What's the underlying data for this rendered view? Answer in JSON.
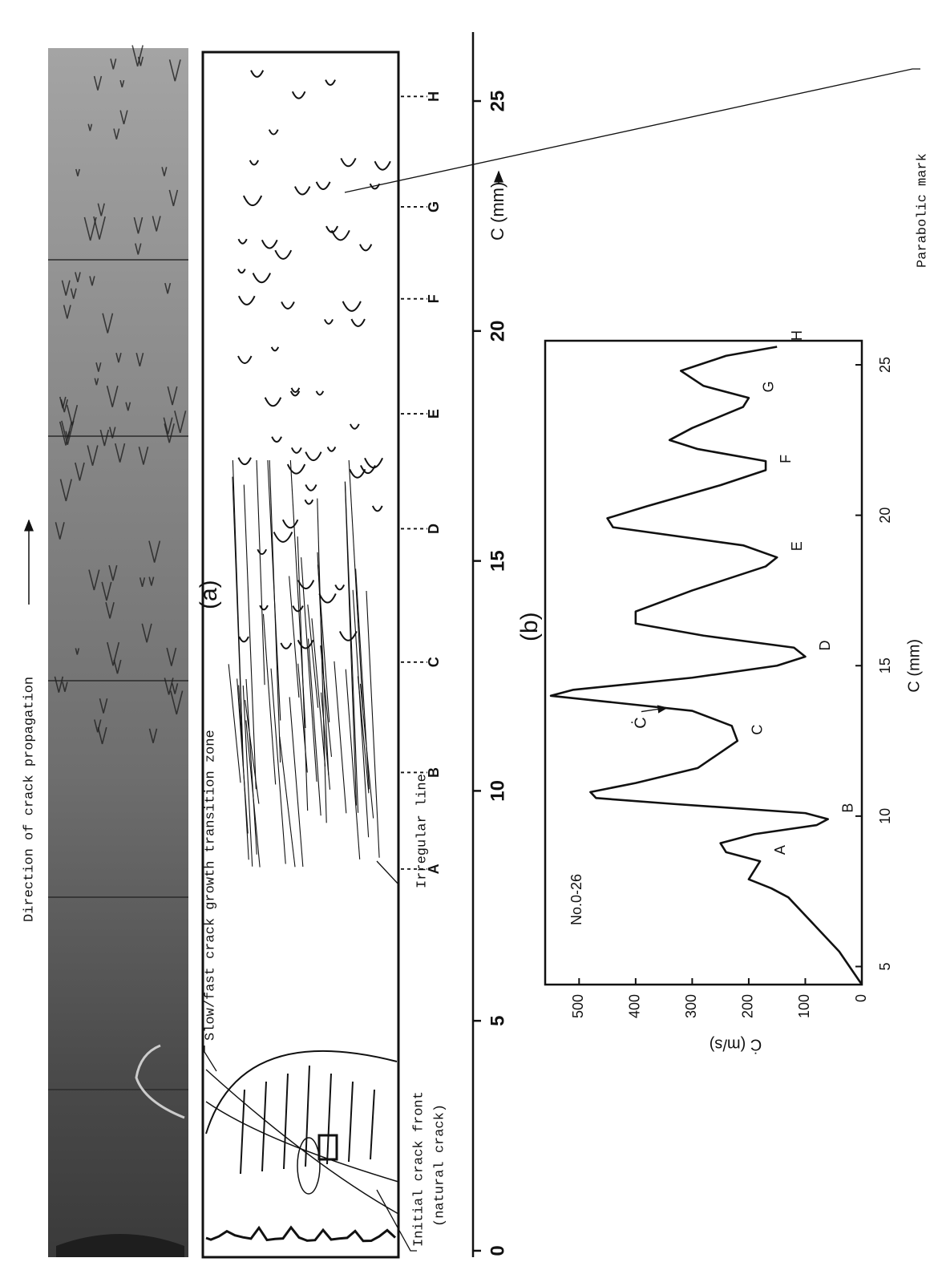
{
  "figure": {
    "direction_label": "Direction of crack propagation",
    "panel_a": {
      "label": "(a)",
      "transition_label": "Slow/fast crack growth transition zone",
      "parabolic_label": "Parabolic mark",
      "irregular_label": "Irregular line",
      "initial_label": [
        "Initial crack front",
        "(natural crack)"
      ],
      "marks": [
        {
          "label": "A",
          "c": 8.3
        },
        {
          "label": "B",
          "c": 10.4
        },
        {
          "label": "C",
          "c": 12.8
        },
        {
          "label": "D",
          "c": 15.7
        },
        {
          "label": "E",
          "c": 18.2
        },
        {
          "label": "F",
          "c": 20.7
        },
        {
          "label": "G",
          "c": 22.7
        },
        {
          "label": "H",
          "c": 25.1
        }
      ]
    },
    "scale": {
      "label": "C (mm)",
      "lim": [
        -0.14,
        26.5
      ],
      "ticks": [
        0,
        5,
        10,
        15,
        20,
        25
      ]
    }
  },
  "chart_data": {
    "type": "line",
    "label": "(b)",
    "annotation": "No.0-26",
    "peak_label": "Ċ",
    "x_label": "C (mm)",
    "y_label": "Ċ (m/s)",
    "x": [
      4.4,
      5.5,
      6.5,
      7.3,
      7.6,
      7.9,
      8.2,
      8.5,
      8.8,
      9.1,
      9.4,
      9.7,
      9.9,
      10.1,
      10.4,
      10.6,
      10.8,
      11.1,
      11.6,
      12.5,
      13.0,
      13.5,
      13.8,
      14.0,
      14.2,
      14.6,
      15.0,
      15.3,
      15.6,
      16.0,
      16.4,
      16.8,
      17.5,
      18.3,
      18.6,
      19.0,
      19.6,
      19.9,
      20.3,
      21.0,
      21.5,
      21.8,
      22.2,
      22.5,
      22.9,
      23.6,
      23.9,
      24.3,
      24.8,
      25.3,
      25.6
    ],
    "series": [
      {
        "color": "#111111",
        "values": [
          0,
          40,
          90,
          130,
          160,
          200,
          190,
          180,
          240,
          250,
          190,
          80,
          60,
          100,
          330,
          470,
          480,
          400,
          290,
          220,
          230,
          300,
          450,
          550,
          510,
          300,
          150,
          100,
          120,
          280,
          400,
          400,
          300,
          170,
          150,
          210,
          440,
          450,
          380,
          250,
          170,
          170,
          290,
          340,
          300,
          210,
          200,
          280,
          320,
          240,
          150
        ]
      }
    ],
    "point_labels": [
      null,
      null,
      null,
      null,
      null,
      null,
      null,
      "A",
      null,
      null,
      null,
      null,
      "B",
      null,
      null,
      null,
      null,
      null,
      null,
      "C",
      null,
      null,
      null,
      null,
      null,
      null,
      null,
      "D",
      null,
      null,
      null,
      null,
      null,
      null,
      "E",
      null,
      null,
      null,
      null,
      null,
      "F",
      null,
      null,
      null,
      null,
      null,
      "G",
      null,
      null,
      null,
      "H"
    ],
    "xlim": [
      4.4,
      25.8
    ],
    "xticks": [
      5,
      10,
      15,
      20,
      25
    ],
    "ylim": [
      0,
      560
    ],
    "yticks": [
      0,
      100,
      200,
      300,
      400,
      500
    ]
  }
}
